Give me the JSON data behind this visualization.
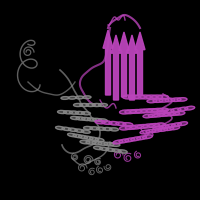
{
  "background_color": "#000000",
  "color_A": "#bb44bb",
  "color_B": "#888888",
  "figsize": [
    2.0,
    2.0
  ],
  "dpi": 100
}
